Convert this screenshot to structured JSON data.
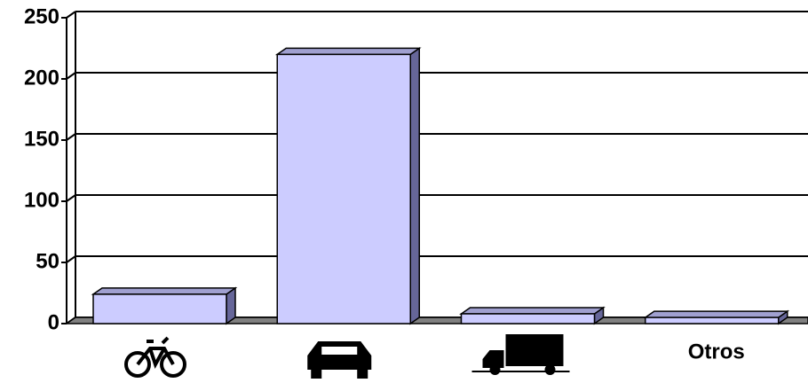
{
  "chart_data": {
    "type": "bar3d",
    "categories": [
      null,
      null,
      null,
      "Otros"
    ],
    "values": [
      24,
      220,
      8,
      5
    ],
    "color": "#ccccff",
    "ylim": [
      0,
      250
    ],
    "yticks": [
      0,
      50,
      100,
      150,
      200,
      250
    ],
    "grid": true
  }
}
